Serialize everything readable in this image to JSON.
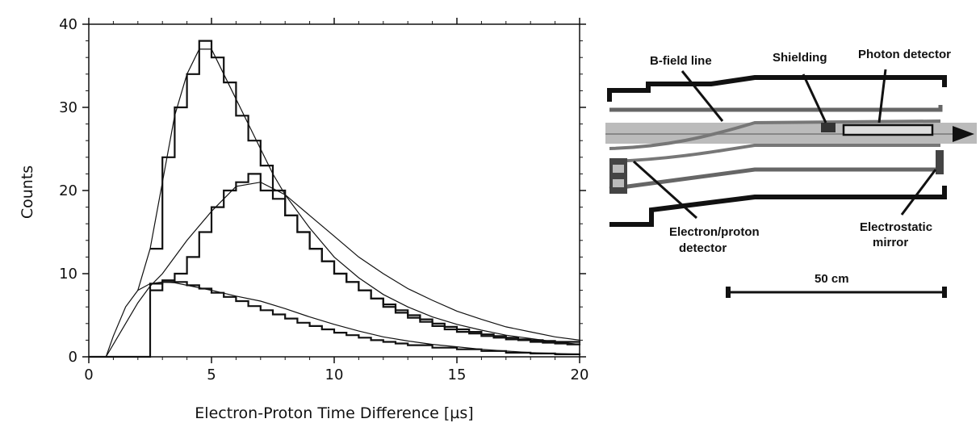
{
  "chart_data": {
    "type": "line",
    "xlabel": "Electron-Proton Time Difference [µs]",
    "ylabel": "Counts",
    "xlim": [
      0,
      20
    ],
    "ylim": [
      0,
      40
    ],
    "x_ticks": [
      "0",
      "5",
      "10",
      "15",
      "20"
    ],
    "y_ticks": [
      "0",
      "10",
      "20",
      "30",
      "40"
    ],
    "grid": false,
    "series": [
      {
        "style": "histogram",
        "x": [
          2.5,
          3.0,
          3.5,
          4.0,
          4.5,
          5.0,
          5.5,
          6.0,
          6.5,
          7.0,
          7.5,
          8.0,
          8.5,
          9.0,
          9.5,
          10.0,
          10.5,
          11.0,
          11.5,
          12.0,
          12.5,
          13.0,
          13.5,
          14.0,
          14.5,
          15.0,
          15.5,
          16.0,
          16.5,
          17.0,
          17.5,
          18.0,
          18.5,
          19.0,
          19.5,
          20.0
        ],
        "values": [
          13,
          24,
          30,
          34,
          38,
          36,
          33,
          29,
          26,
          23,
          20,
          17,
          15,
          13,
          11.5,
          10,
          9,
          8,
          7,
          6.3,
          5.6,
          5,
          4.5,
          4.0,
          3.6,
          3.3,
          3.0,
          2.7,
          2.5,
          2.3,
          2.1,
          2.0,
          1.9,
          1.8,
          1.8,
          1.7
        ]
      },
      {
        "style": "fit",
        "x": [
          2.0,
          2.5,
          3.0,
          3.5,
          4.0,
          4.5,
          5.0,
          5.5,
          6.0,
          6.5,
          7.0,
          7.5,
          8.0,
          9.0,
          10.0,
          11.0,
          12.0,
          13.0,
          14.0,
          15.0,
          16.0,
          17.0,
          18.0,
          19.0,
          20.0
        ],
        "values": [
          8,
          13,
          21,
          29,
          34,
          37,
          37,
          34,
          31,
          28,
          25,
          22,
          19.5,
          15.5,
          12,
          9.5,
          7.5,
          6,
          4.8,
          3.9,
          3.2,
          2.6,
          2.2,
          1.8,
          1.5
        ]
      },
      {
        "style": "histogram",
        "x": [
          2.5,
          3.0,
          3.5,
          4.0,
          4.5,
          5.0,
          5.5,
          6.0,
          6.5,
          7.0,
          7.5,
          8.0,
          8.5,
          9.0,
          9.5,
          10.0,
          10.5,
          11.0,
          11.5,
          12.0,
          12.5,
          13.0,
          13.5,
          14.0,
          14.5,
          15.0,
          15.5,
          16.0,
          16.5,
          17.0,
          17.5,
          18.0,
          18.5,
          19.0,
          19.5,
          20.0
        ],
        "values": [
          8,
          9,
          10,
          12,
          15,
          18,
          20,
          21,
          22,
          20,
          19,
          17,
          15,
          13,
          11.5,
          10,
          9,
          8,
          7,
          6,
          5.3,
          4.7,
          4.2,
          3.7,
          3.3,
          3.0,
          2.8,
          2.5,
          2.3,
          2.1,
          2.0,
          1.8,
          1.7,
          1.6,
          1.5,
          1.4
        ]
      },
      {
        "style": "fit",
        "x": [
          0.7,
          1.0,
          1.5,
          2.0,
          2.5,
          3.0,
          3.5,
          4.0,
          5.0,
          6.0,
          7.0,
          8.0,
          9.0,
          10.0,
          11.0,
          12.0,
          13.0,
          14.0,
          15.0,
          16.0,
          17.0,
          18.0,
          19.0,
          20.0
        ],
        "values": [
          0,
          1.5,
          4,
          6.5,
          8.5,
          10,
          12,
          14,
          17.5,
          20.5,
          21,
          19.5,
          17,
          14.5,
          12,
          10,
          8.2,
          6.8,
          5.5,
          4.5,
          3.6,
          3,
          2.4,
          2
        ]
      },
      {
        "style": "histogram",
        "x": [
          0,
          2.5,
          3.0,
          3.5,
          4.0,
          4.5,
          5.0,
          5.5,
          6.0,
          6.5,
          7.0,
          7.5,
          8.0,
          8.5,
          9.0,
          9.5,
          10.0,
          10.5,
          11.0,
          11.5,
          12.0,
          12.5,
          13.0,
          14.0,
          15.0,
          16.0,
          17.0,
          18.0,
          19.0,
          20.0
        ],
        "values": [
          0,
          8.8,
          9.2,
          9.0,
          8.6,
          8.2,
          7.7,
          7.2,
          6.7,
          6.1,
          5.6,
          5.1,
          4.6,
          4.1,
          3.7,
          3.3,
          2.9,
          2.6,
          2.3,
          2.0,
          1.8,
          1.6,
          1.4,
          1.1,
          0.9,
          0.7,
          0.5,
          0.4,
          0.3,
          0.2
        ]
      },
      {
        "style": "fit",
        "x": [
          0.7,
          1.0,
          1.5,
          2.0,
          2.5,
          3.0,
          3.5,
          4.0,
          5.0,
          6.0,
          7.0,
          8.0,
          9.0,
          10.0,
          11.0,
          12.0,
          13.0,
          14.0,
          15.0,
          16.0,
          17.0,
          18.0,
          19.0,
          20.0
        ],
        "values": [
          0,
          2.5,
          6,
          8,
          8.8,
          9,
          8.9,
          8.6,
          8,
          7.3,
          6.7,
          5.8,
          4.8,
          3.9,
          3.1,
          2.4,
          1.9,
          1.5,
          1.2,
          0.9,
          0.7,
          0.5,
          0.4,
          0.3
        ]
      }
    ]
  },
  "diagram": {
    "labels": {
      "b_field_line": "B-field line",
      "shielding": "Shielding",
      "photon_detector": "Photon detector",
      "electron_proton_detector_line1": "Electron/proton",
      "electron_proton_detector_line2": "detector",
      "electrostatic_mirror_line1": "Electrostatic",
      "electrostatic_mirror_line2": "mirror",
      "scale": "50 cm"
    }
  }
}
